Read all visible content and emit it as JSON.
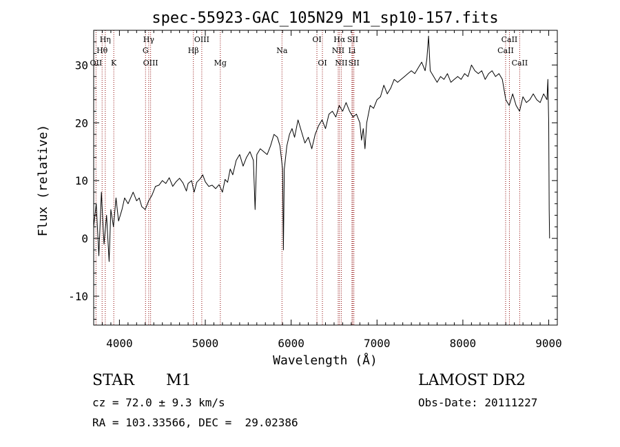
{
  "chart_data": {
    "type": "line",
    "title": "spec-55923-GAC_105N29_M1_sp10-157.fits",
    "xlabel": "Wavelength (Å)",
    "ylabel": "Flux (relative)",
    "xlim": [
      3700,
      9100
    ],
    "ylim": [
      -15,
      36
    ],
    "xticks": [
      4000,
      5000,
      6000,
      7000,
      8000,
      9000
    ],
    "yticks": [
      -10,
      0,
      10,
      20,
      30
    ],
    "grid": false,
    "line_color": "#000000",
    "marker_color": "#8b0000",
    "series": [
      {
        "points": [
          [
            3700,
            2
          ],
          [
            3730,
            6
          ],
          [
            3760,
            -3
          ],
          [
            3790,
            8
          ],
          [
            3820,
            -1
          ],
          [
            3850,
            4
          ],
          [
            3880,
            -4
          ],
          [
            3900,
            5
          ],
          [
            3930,
            2
          ],
          [
            3960,
            7
          ],
          [
            3990,
            3
          ],
          [
            4030,
            5
          ],
          [
            4060,
            7
          ],
          [
            4100,
            6
          ],
          [
            4130,
            7
          ],
          [
            4160,
            8
          ],
          [
            4200,
            6.5
          ],
          [
            4230,
            7
          ],
          [
            4260,
            5.5
          ],
          [
            4300,
            5
          ],
          [
            4340,
            6.5
          ],
          [
            4380,
            7.5
          ],
          [
            4420,
            9
          ],
          [
            4460,
            9.2
          ],
          [
            4500,
            10
          ],
          [
            4540,
            9.5
          ],
          [
            4580,
            10.5
          ],
          [
            4620,
            9
          ],
          [
            4660,
            9.8
          ],
          [
            4700,
            10.4
          ],
          [
            4740,
            9.6
          ],
          [
            4780,
            8.2
          ],
          [
            4800,
            9.5
          ],
          [
            4840,
            10
          ],
          [
            4870,
            8
          ],
          [
            4900,
            9.7
          ],
          [
            4940,
            10.3
          ],
          [
            4970,
            11
          ],
          [
            5000,
            9.8
          ],
          [
            5040,
            9
          ],
          [
            5080,
            9.2
          ],
          [
            5120,
            8.6
          ],
          [
            5160,
            9.3
          ],
          [
            5200,
            8
          ],
          [
            5230,
            10.2
          ],
          [
            5260,
            9.7
          ],
          [
            5290,
            12
          ],
          [
            5320,
            11
          ],
          [
            5360,
            13.5
          ],
          [
            5400,
            14.5
          ],
          [
            5440,
            12.5
          ],
          [
            5480,
            14
          ],
          [
            5520,
            15
          ],
          [
            5560,
            13.5
          ],
          [
            5580,
            5
          ],
          [
            5600,
            14.5
          ],
          [
            5640,
            15.5
          ],
          [
            5680,
            15
          ],
          [
            5720,
            14.5
          ],
          [
            5760,
            16
          ],
          [
            5800,
            18
          ],
          [
            5840,
            17.5
          ],
          [
            5870,
            16
          ],
          [
            5900,
            12
          ],
          [
            5910,
            -2
          ],
          [
            5920,
            12
          ],
          [
            5950,
            16
          ],
          [
            5980,
            18
          ],
          [
            6010,
            19
          ],
          [
            6040,
            17.5
          ],
          [
            6080,
            20.5
          ],
          [
            6120,
            18.5
          ],
          [
            6160,
            16.5
          ],
          [
            6200,
            17.5
          ],
          [
            6240,
            15.5
          ],
          [
            6280,
            18
          ],
          [
            6320,
            19.5
          ],
          [
            6360,
            20.5
          ],
          [
            6400,
            19
          ],
          [
            6440,
            21.5
          ],
          [
            6480,
            22
          ],
          [
            6520,
            21
          ],
          [
            6560,
            23
          ],
          [
            6600,
            22
          ],
          [
            6640,
            23.5
          ],
          [
            6680,
            22
          ],
          [
            6720,
            21
          ],
          [
            6760,
            21.5
          ],
          [
            6800,
            20
          ],
          [
            6820,
            17
          ],
          [
            6840,
            19
          ],
          [
            6860,
            15.5
          ],
          [
            6880,
            20
          ],
          [
            6920,
            23
          ],
          [
            6960,
            22.5
          ],
          [
            7000,
            24
          ],
          [
            7040,
            24.5
          ],
          [
            7080,
            26.5
          ],
          [
            7120,
            25
          ],
          [
            7160,
            26
          ],
          [
            7200,
            27.5
          ],
          [
            7240,
            27
          ],
          [
            7280,
            27.5
          ],
          [
            7320,
            28
          ],
          [
            7360,
            28.5
          ],
          [
            7400,
            29
          ],
          [
            7440,
            28.5
          ],
          [
            7480,
            29.5
          ],
          [
            7520,
            30.5
          ],
          [
            7560,
            29
          ],
          [
            7580,
            31
          ],
          [
            7600,
            35
          ],
          [
            7620,
            29
          ],
          [
            7660,
            28
          ],
          [
            7700,
            27
          ],
          [
            7740,
            28
          ],
          [
            7780,
            27.5
          ],
          [
            7820,
            28.5
          ],
          [
            7860,
            27
          ],
          [
            7900,
            27.5
          ],
          [
            7940,
            28
          ],
          [
            7980,
            27.5
          ],
          [
            8020,
            28.5
          ],
          [
            8060,
            28
          ],
          [
            8100,
            30
          ],
          [
            8140,
            29
          ],
          [
            8180,
            28.5
          ],
          [
            8220,
            29
          ],
          [
            8260,
            27.5
          ],
          [
            8300,
            28.5
          ],
          [
            8340,
            29
          ],
          [
            8380,
            28
          ],
          [
            8420,
            28.5
          ],
          [
            8460,
            27.5
          ],
          [
            8500,
            24
          ],
          [
            8540,
            23
          ],
          [
            8580,
            25
          ],
          [
            8620,
            23
          ],
          [
            8660,
            22
          ],
          [
            8700,
            24.5
          ],
          [
            8740,
            23.5
          ],
          [
            8780,
            24
          ],
          [
            8820,
            25
          ],
          [
            8860,
            24
          ],
          [
            8900,
            23.5
          ],
          [
            8940,
            25
          ],
          [
            8980,
            24
          ],
          [
            8990,
            27.5
          ],
          [
            9000,
            20
          ],
          [
            9005,
            5
          ],
          [
            9010,
            0
          ]
        ]
      }
    ],
    "lines": [
      {
        "label": "Hη",
        "wl": 3835,
        "row": 0
      },
      {
        "label": "Hθ",
        "wl": 3798,
        "row": 1
      },
      {
        "label": "OII",
        "wl": 3727,
        "row": 2
      },
      {
        "label": "K",
        "wl": 3934,
        "row": 2
      },
      {
        "label": "Hγ",
        "wl": 4341,
        "row": 0
      },
      {
        "label": "G",
        "wl": 4304,
        "row": 1
      },
      {
        "label": "OIII",
        "wl": 4363,
        "row": 2
      },
      {
        "label": "OIII",
        "wl": 4959,
        "row": 0
      },
      {
        "label": "Hβ",
        "wl": 4861,
        "row": 1
      },
      {
        "label": "Mg",
        "wl": 5175,
        "row": 2
      },
      {
        "label": "Na",
        "wl": 5893,
        "row": 1
      },
      {
        "label": "OI",
        "wl": 6300,
        "row": 0
      },
      {
        "label": "OI",
        "wl": 6364,
        "row": 2
      },
      {
        "label": "Hα",
        "wl": 6563,
        "row": 0
      },
      {
        "label": "NII",
        "wl": 6548,
        "row": 1
      },
      {
        "label": "NII",
        "wl": 6584,
        "row": 2
      },
      {
        "label": "SII",
        "wl": 6717,
        "row": 0
      },
      {
        "label": "Li",
        "wl": 6708,
        "row": 1
      },
      {
        "label": "SII",
        "wl": 6731,
        "row": 2
      },
      {
        "label": "CaII",
        "wl": 8542,
        "row": 0
      },
      {
        "label": "CaII",
        "wl": 8498,
        "row": 1
      },
      {
        "label": "CaII",
        "wl": 8662,
        "row": 2
      }
    ]
  },
  "info": {
    "class_label": "STAR",
    "subclass_label": "M1",
    "cz_line": "cz = 72.0 ± 9.3 km/s",
    "coords_line": "RA = 103.33566, DEC =  29.02386",
    "survey_label": "LAMOST DR2",
    "obs_date_line": "Obs-Date: 20111227"
  }
}
